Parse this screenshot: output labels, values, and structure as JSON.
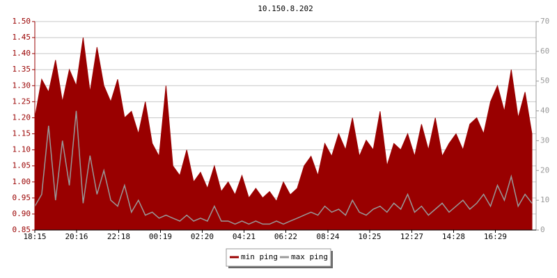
{
  "chart_data": {
    "type": "line",
    "title": "10.150.8.202",
    "x": [
      "18:15",
      "18:35",
      "18:55",
      "19:15",
      "19:35",
      "19:55",
      "20:15",
      "20:35",
      "20:55",
      "21:15",
      "21:35",
      "21:55",
      "22:15",
      "22:35",
      "22:55",
      "23:15",
      "23:35",
      "23:55",
      "00:15",
      "00:35",
      "00:55",
      "01:15",
      "01:35",
      "01:55",
      "02:15",
      "02:35",
      "02:55",
      "03:15",
      "03:35",
      "03:55",
      "04:15",
      "04:35",
      "04:55",
      "05:15",
      "05:35",
      "05:55",
      "06:15",
      "06:35",
      "06:55",
      "07:15",
      "07:35",
      "07:55",
      "08:15",
      "08:35",
      "08:55",
      "09:15",
      "09:35",
      "09:55",
      "10:15",
      "10:35",
      "10:55",
      "11:15",
      "11:35",
      "11:55",
      "12:15",
      "12:35",
      "12:55",
      "13:15",
      "13:35",
      "13:55",
      "14:15",
      "14:35",
      "14:55",
      "15:15",
      "15:35",
      "15:55",
      "16:15",
      "16:35",
      "16:55",
      "17:15",
      "17:35",
      "17:55",
      "18:15"
    ],
    "xlim": [
      "18:15",
      "18:27"
    ],
    "xticks": [
      "18:15",
      "20:16",
      "22:18",
      "00:19",
      "02:20",
      "04:21",
      "06:22",
      "08:24",
      "10:25",
      "12:27",
      "14:28",
      "16:29"
    ],
    "ylim": [
      0.85,
      1.5
    ],
    "yticks": [
      {
        "value": 0.85,
        "label": "0.85"
      },
      {
        "value": 0.9,
        "label": "0.90"
      },
      {
        "value": 0.95,
        "label": "0.95"
      },
      {
        "value": 1.0,
        "label": "1.00"
      },
      {
        "value": 1.05,
        "label": "1.05"
      },
      {
        "value": 1.1,
        "label": "1.10"
      },
      {
        "value": 1.15,
        "label": "1.15"
      },
      {
        "value": 1.2,
        "label": "1.20"
      },
      {
        "value": 1.25,
        "label": "1.25"
      },
      {
        "value": 1.3,
        "label": "1.30"
      },
      {
        "value": 1.35,
        "label": "1.35"
      },
      {
        "value": 1.4,
        "label": "1.40"
      },
      {
        "value": 1.45,
        "label": "1.45"
      },
      {
        "value": 1.5,
        "label": "1.50"
      }
    ],
    "y2lim": [
      0,
      70
    ],
    "y2ticks": [
      0,
      10,
      20,
      30,
      40,
      50,
      60,
      70
    ],
    "grid": true,
    "legend": "bottom",
    "series": [
      {
        "name": "min ping",
        "color": "#990000",
        "fill": true,
        "values": [
          1.2,
          1.32,
          1.28,
          1.38,
          1.25,
          1.35,
          1.3,
          1.45,
          1.28,
          1.42,
          1.3,
          1.25,
          1.32,
          1.2,
          1.22,
          1.15,
          1.25,
          1.12,
          1.08,
          1.3,
          1.05,
          1.02,
          1.1,
          1.0,
          1.03,
          0.98,
          1.05,
          0.97,
          1.0,
          0.96,
          1.02,
          0.95,
          0.98,
          0.95,
          0.97,
          0.94,
          1.0,
          0.96,
          0.98,
          1.05,
          1.08,
          1.02,
          1.12,
          1.08,
          1.15,
          1.1,
          1.2,
          1.08,
          1.13,
          1.1,
          1.22,
          1.05,
          1.12,
          1.1,
          1.15,
          1.08,
          1.18,
          1.1,
          1.2,
          1.08,
          1.12,
          1.15,
          1.1,
          1.18,
          1.2,
          1.15,
          1.25,
          1.3,
          1.22,
          1.35,
          1.2,
          1.28,
          1.15
        ]
      },
      {
        "name": "max ping",
        "color": "#999999",
        "axis": "y2",
        "values": [
          8,
          12,
          35,
          10,
          30,
          15,
          40,
          9,
          25,
          12,
          20,
          10,
          8,
          15,
          6,
          10,
          5,
          6,
          4,
          5,
          4,
          3,
          5,
          3,
          4,
          3,
          8,
          3,
          3,
          2,
          3,
          2,
          3,
          2,
          2,
          3,
          2,
          3,
          4,
          5,
          6,
          5,
          8,
          6,
          7,
          5,
          10,
          6,
          5,
          7,
          8,
          6,
          9,
          7,
          12,
          6,
          8,
          5,
          7,
          9,
          6,
          8,
          10,
          7,
          9,
          12,
          8,
          15,
          10,
          18,
          8,
          12,
          9
        ]
      }
    ]
  }
}
